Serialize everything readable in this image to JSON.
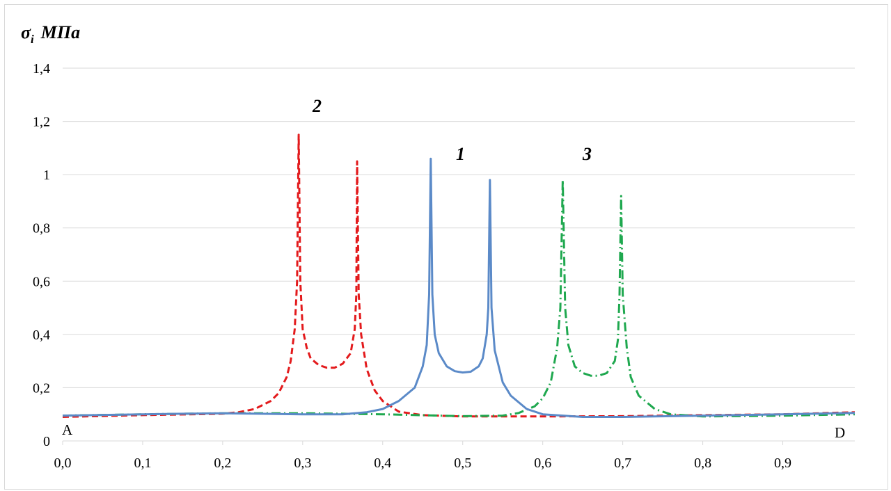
{
  "chart_data": {
    "type": "line",
    "ylabel": "σᵢ  МПа",
    "ylabel_symbol": "σ",
    "ylabel_sub": "i",
    "ylabel_unit": "МПа",
    "xlim": [
      0.0,
      0.99
    ],
    "ylim": [
      0,
      1.4
    ],
    "x_ticks": [
      "0,0",
      "0,1",
      "0,2",
      "0,3",
      "0,4",
      "0,5",
      "0,6",
      "0,7",
      "0,8",
      "0,9"
    ],
    "y_ticks": [
      "0",
      "0,2",
      "0,4",
      "0,6",
      "0,8",
      "1",
      "1,2",
      "1,4"
    ],
    "grid": "horizontal",
    "point_labels": {
      "start": "A",
      "end": "D"
    },
    "series": [
      {
        "name": "1",
        "color": "#5b8ac8",
        "style": "solid",
        "points": [
          [
            0.0,
            0.095
          ],
          [
            0.1,
            0.1
          ],
          [
            0.2,
            0.104
          ],
          [
            0.3,
            0.1
          ],
          [
            0.35,
            0.1
          ],
          [
            0.38,
            0.108
          ],
          [
            0.4,
            0.12
          ],
          [
            0.42,
            0.15
          ],
          [
            0.44,
            0.2
          ],
          [
            0.45,
            0.28
          ],
          [
            0.455,
            0.36
          ],
          [
            0.458,
            0.55
          ],
          [
            0.46,
            1.06
          ],
          [
            0.462,
            0.55
          ],
          [
            0.465,
            0.4
          ],
          [
            0.47,
            0.33
          ],
          [
            0.48,
            0.28
          ],
          [
            0.49,
            0.262
          ],
          [
            0.5,
            0.257
          ],
          [
            0.51,
            0.26
          ],
          [
            0.52,
            0.28
          ],
          [
            0.525,
            0.31
          ],
          [
            0.53,
            0.4
          ],
          [
            0.532,
            0.5
          ],
          [
            0.534,
            0.98
          ],
          [
            0.536,
            0.5
          ],
          [
            0.54,
            0.34
          ],
          [
            0.55,
            0.22
          ],
          [
            0.56,
            0.17
          ],
          [
            0.58,
            0.12
          ],
          [
            0.6,
            0.1
          ],
          [
            0.65,
            0.09
          ],
          [
            0.7,
            0.09
          ],
          [
            0.8,
            0.095
          ],
          [
            0.9,
            0.1
          ],
          [
            0.99,
            0.105
          ]
        ]
      },
      {
        "name": "2",
        "color": "#e31a1c",
        "style": "dashed",
        "points": [
          [
            0.0,
            0.09
          ],
          [
            0.1,
            0.097
          ],
          [
            0.2,
            0.102
          ],
          [
            0.22,
            0.108
          ],
          [
            0.24,
            0.12
          ],
          [
            0.26,
            0.15
          ],
          [
            0.27,
            0.18
          ],
          [
            0.28,
            0.24
          ],
          [
            0.285,
            0.3
          ],
          [
            0.29,
            0.42
          ],
          [
            0.293,
            0.6
          ],
          [
            0.295,
            1.15
          ],
          [
            0.297,
            0.6
          ],
          [
            0.3,
            0.42
          ],
          [
            0.305,
            0.35
          ],
          [
            0.31,
            0.31
          ],
          [
            0.32,
            0.285
          ],
          [
            0.33,
            0.275
          ],
          [
            0.34,
            0.275
          ],
          [
            0.35,
            0.29
          ],
          [
            0.36,
            0.33
          ],
          [
            0.365,
            0.42
          ],
          [
            0.367,
            0.55
          ],
          [
            0.368,
            1.05
          ],
          [
            0.37,
            0.55
          ],
          [
            0.373,
            0.4
          ],
          [
            0.38,
            0.27
          ],
          [
            0.39,
            0.19
          ],
          [
            0.4,
            0.15
          ],
          [
            0.42,
            0.11
          ],
          [
            0.45,
            0.097
          ],
          [
            0.5,
            0.092
          ],
          [
            0.6,
            0.092
          ],
          [
            0.7,
            0.093
          ],
          [
            0.8,
            0.097
          ],
          [
            0.9,
            0.1
          ],
          [
            0.99,
            0.108
          ]
        ]
      },
      {
        "name": "3",
        "color": "#1fa84f",
        "style": "dashdot",
        "points": [
          [
            0.0,
            0.095
          ],
          [
            0.1,
            0.1
          ],
          [
            0.2,
            0.104
          ],
          [
            0.3,
            0.104
          ],
          [
            0.4,
            0.1
          ],
          [
            0.5,
            0.093
          ],
          [
            0.55,
            0.095
          ],
          [
            0.57,
            0.105
          ],
          [
            0.59,
            0.13
          ],
          [
            0.6,
            0.16
          ],
          [
            0.61,
            0.22
          ],
          [
            0.618,
            0.35
          ],
          [
            0.622,
            0.5
          ],
          [
            0.625,
            0.98
          ],
          [
            0.628,
            0.5
          ],
          [
            0.632,
            0.36
          ],
          [
            0.64,
            0.28
          ],
          [
            0.65,
            0.255
          ],
          [
            0.66,
            0.245
          ],
          [
            0.67,
            0.245
          ],
          [
            0.68,
            0.255
          ],
          [
            0.69,
            0.3
          ],
          [
            0.694,
            0.38
          ],
          [
            0.696,
            0.55
          ],
          [
            0.698,
            0.92
          ],
          [
            0.7,
            0.55
          ],
          [
            0.705,
            0.35
          ],
          [
            0.71,
            0.24
          ],
          [
            0.72,
            0.17
          ],
          [
            0.74,
            0.12
          ],
          [
            0.76,
            0.1
          ],
          [
            0.8,
            0.092
          ],
          [
            0.9,
            0.095
          ],
          [
            0.99,
            0.1
          ]
        ]
      }
    ],
    "series_labels": [
      "1",
      "2",
      "3"
    ]
  }
}
